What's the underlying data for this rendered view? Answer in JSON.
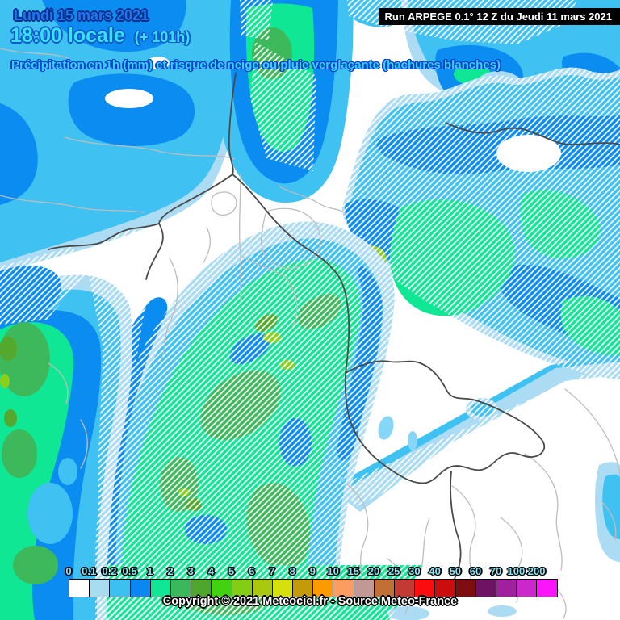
{
  "header": {
    "date": "Lundi 15 mars 2021",
    "time": "18:00 locale",
    "forecast_offset": "(+ 101h)",
    "run_info": "Run ARPEGE 0.1° 12 Z du Jeudi 11 mars 2021",
    "subtitle": "Précipitation en 1h (mm) et risque de neige ou pluie verglaçante (hachures blanches)"
  },
  "legend": {
    "stops": [
      {
        "label": "0",
        "color": "#ffffff"
      },
      {
        "label": "0.1",
        "color": "#a8dcf0"
      },
      {
        "label": "0.2",
        "color": "#3cc0f0"
      },
      {
        "label": "0.5",
        "color": "#0a87f0"
      },
      {
        "label": "1",
        "color": "#0fe796"
      },
      {
        "label": "2",
        "color": "#3cb85c"
      },
      {
        "label": "3",
        "color": "#4fa62c"
      },
      {
        "label": "4",
        "color": "#43d211"
      },
      {
        "label": "5",
        "color": "#83cd17"
      },
      {
        "label": "6",
        "color": "#a9c90f"
      },
      {
        "label": "7",
        "color": "#d5e00d"
      },
      {
        "label": "8",
        "color": "#c39a0a"
      },
      {
        "label": "9",
        "color": "#fb9b00"
      },
      {
        "label": "10",
        "color": "#fb9c61"
      },
      {
        "label": "15",
        "color": "#c19896"
      },
      {
        "label": "20",
        "color": "#c16f35"
      },
      {
        "label": "25",
        "color": "#c23a33"
      },
      {
        "label": "30",
        "color": "#fb0d0d"
      },
      {
        "label": "40",
        "color": "#cb0d0d"
      },
      {
        "label": "50",
        "color": "#7d0d10"
      },
      {
        "label": "60",
        "color": "#6e1263"
      },
      {
        "label": "70",
        "color": "#a120a0"
      },
      {
        "label": "100",
        "color": "#cb28cb"
      },
      {
        "label": "200",
        "color": "#fb15fb"
      }
    ]
  },
  "footer": {
    "copyright": "Copyright © 2021 Meteociel.fr - Source Meteo-France"
  },
  "map": {
    "hatch_color": "#ffffff",
    "palette": {
      "white": "#ffffff",
      "rain_01": "#abdcf4",
      "rain_02": "#3fc1f2",
      "rain_05": "#0b8cf0",
      "rain_1": "#0fe795",
      "rain_2": "#3db95b",
      "rain_3": "#55a82e",
      "rain_5": "#8bcf1d",
      "lake": "#86d7f7",
      "border_country": "#4a4a4a",
      "border_region": "#bdbdbd"
    }
  }
}
